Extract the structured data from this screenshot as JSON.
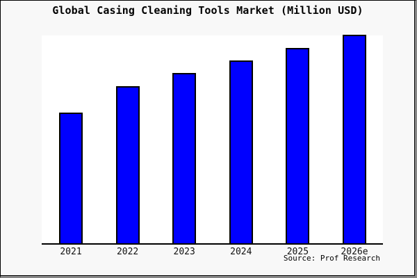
{
  "source_caption": "Source: Prof Research",
  "colors": {
    "bar_fill": "#0000ff",
    "bar_border": "#000000",
    "axis": "#000000",
    "plot_background": "#ffffff",
    "page_background": "#f8f8f8",
    "text": "#000000"
  },
  "chart_data": {
    "type": "bar",
    "title": "Global Casing Cleaning Tools Market (Million USD)",
    "categories": [
      "2021",
      "2022",
      "2023",
      "2024",
      "2025",
      "2026e"
    ],
    "values": [
      62.7,
      75.3,
      81.7,
      87.7,
      93.7,
      100
    ],
    "xlabel": "",
    "ylabel": "",
    "ylim": [
      0,
      100
    ],
    "y_axis_shown": false,
    "grid": false,
    "legend": false,
    "annotation": "Source: Prof Research"
  }
}
